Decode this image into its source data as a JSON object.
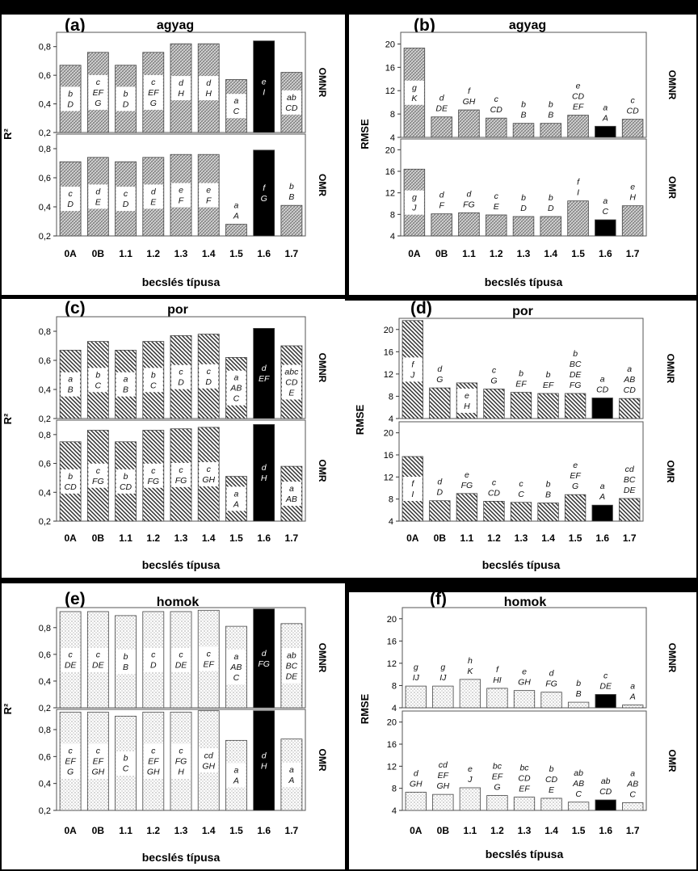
{
  "figure": {
    "categories": [
      "0A",
      "0B",
      "1.1",
      "1.2",
      "1.3",
      "1.4",
      "1.5",
      "1.6",
      "1.7"
    ],
    "xlabel": "becslés típusa",
    "row_labels": [
      "OMNR",
      "OMR"
    ],
    "r2_label": "R²",
    "rmse_label": "RMSE",
    "colors": {
      "highlight": "#000000",
      "frame": "#666666",
      "background": "#ffffff",
      "outer": "#000000"
    },
    "patterns": {
      "agyag": "crosshatch",
      "por": "diagonal-hatch",
      "homok": "dotted"
    }
  },
  "chart_data": [
    {
      "id": "a",
      "panel_label": "(a)",
      "title": "agyag",
      "type": "bar",
      "metric": "R2",
      "ylim": [
        0.2,
        0.9
      ],
      "yticks": [
        "0,2",
        "0,4",
        "0,6",
        "0,8"
      ],
      "ytick_values": [
        0.2,
        0.4,
        0.6,
        0.8
      ],
      "series": [
        {
          "name": "OMNR",
          "values": [
            0.67,
            0.76,
            0.67,
            0.76,
            0.82,
            0.82,
            0.57,
            0.84,
            0.62
          ],
          "letters": [
            "b|D",
            "c|EF|G",
            "b|D",
            "c|EF|G",
            "d|H",
            "d|H",
            "a|C",
            "e|I",
            "ab|CD"
          ]
        },
        {
          "name": "OMR",
          "values": [
            0.71,
            0.74,
            0.71,
            0.74,
            0.76,
            0.76,
            0.28,
            0.79,
            0.41
          ],
          "letters": [
            "c|D",
            "d|E",
            "c|D",
            "d|E",
            "e|F",
            "e|F",
            "a|A",
            "f|G",
            "b|B"
          ]
        }
      ]
    },
    {
      "id": "b",
      "panel_label": "(b)",
      "title": "agyag",
      "type": "bar",
      "metric": "RMSE",
      "ylim": [
        4,
        22
      ],
      "yticks": [
        "4",
        "8",
        "12",
        "16",
        "20"
      ],
      "ytick_values": [
        4,
        8,
        12,
        16,
        20
      ],
      "series": [
        {
          "name": "OMNR",
          "values": [
            19.3,
            7.5,
            8.7,
            7.3,
            6.4,
            6.4,
            7.8,
            5.9,
            7.1
          ],
          "letters": [
            "g|K",
            "d|DE",
            "f|GH",
            "c|CD",
            "b|B",
            "b|B",
            "e|CD|EF",
            "a|A",
            "c|CD"
          ]
        },
        {
          "name": "OMR",
          "values": [
            16.4,
            8.1,
            8.3,
            7.9,
            7.6,
            7.6,
            10.5,
            7.0,
            9.6
          ],
          "letters": [
            "g|J",
            "d|F",
            "d|FG",
            "c|E",
            "b|D",
            "b|D",
            "f|I",
            "a|C",
            "e|H"
          ]
        }
      ]
    },
    {
      "id": "c",
      "panel_label": "(c)",
      "title": "por",
      "type": "bar",
      "metric": "R2",
      "ylim": [
        0.2,
        0.9
      ],
      "yticks": [
        "0,2",
        "0,4",
        "0,6",
        "0,8"
      ],
      "ytick_values": [
        0.2,
        0.4,
        0.6,
        0.8
      ],
      "series": [
        {
          "name": "OMNR",
          "values": [
            0.67,
            0.73,
            0.67,
            0.73,
            0.77,
            0.78,
            0.62,
            0.82,
            0.7
          ],
          "letters": [
            "a|B",
            "b|C",
            "a|B",
            "b|C",
            "c|D",
            "c|D",
            "a|AB|C",
            "d|EF",
            "abc|CD|E"
          ]
        },
        {
          "name": "OMR",
          "values": [
            0.75,
            0.83,
            0.75,
            0.83,
            0.84,
            0.85,
            0.51,
            0.87,
            0.58
          ],
          "letters": [
            "b|CD",
            "c|FG",
            "b|CD",
            "c|FG",
            "c|FG",
            "c|GH",
            "a|A",
            "d|H",
            "a|AB"
          ]
        }
      ]
    },
    {
      "id": "d",
      "panel_label": "(d)",
      "title": "por",
      "type": "bar",
      "metric": "RMSE",
      "ylim": [
        4,
        22
      ],
      "yticks": [
        "4",
        "8",
        "12",
        "16",
        "20"
      ],
      "ytick_values": [
        4,
        8,
        12,
        16,
        20
      ],
      "series": [
        {
          "name": "OMNR",
          "values": [
            21.6,
            9.5,
            10.4,
            9.3,
            8.7,
            8.5,
            8.5,
            7.7,
            7.6
          ],
          "letters": [
            "f|J",
            "d|G",
            "e|H",
            "c|G",
            "b|EF",
            "b|EF",
            "b|BC|DE|FG",
            "a|CD",
            "a|AB|CD"
          ]
        },
        {
          "name": "OMR",
          "values": [
            15.7,
            7.7,
            9.0,
            7.6,
            7.4,
            7.3,
            8.8,
            6.9,
            8.1
          ],
          "letters": [
            "f|I",
            "d|D",
            "e|FG",
            "c|CD",
            "c|C",
            "b|B",
            "e|EF|G",
            "a|A",
            "cd|BC|DE"
          ]
        }
      ]
    },
    {
      "id": "e",
      "panel_label": "(e)",
      "title": "homok",
      "type": "bar",
      "metric": "R2",
      "ylim": [
        0.2,
        0.95
      ],
      "yticks": [
        "0,2",
        "0,4",
        "0,6",
        "0,8"
      ],
      "ytick_values": [
        0.2,
        0.4,
        0.6,
        0.8
      ],
      "series": [
        {
          "name": "OMNR",
          "values": [
            0.92,
            0.92,
            0.89,
            0.92,
            0.92,
            0.93,
            0.81,
            0.94,
            0.83
          ],
          "letters": [
            "c|DE",
            "c|DE",
            "b|B",
            "c|D",
            "c|DE",
            "c|EF",
            "a|AB|C",
            "d|FG",
            "ab|BC|DE"
          ]
        },
        {
          "name": "OMR",
          "values": [
            0.93,
            0.93,
            0.9,
            0.93,
            0.93,
            0.94,
            0.72,
            0.94,
            0.73
          ],
          "letters": [
            "c|EF|G",
            "c|EF|GH",
            "b|C",
            "c|EF|GH",
            "c|FG|H",
            "cd|GH",
            "a|A",
            "d|H",
            "a|A"
          ]
        }
      ]
    },
    {
      "id": "f",
      "panel_label": "(f)",
      "title": "homok",
      "type": "bar",
      "metric": "RMSE",
      "ylim": [
        4,
        22
      ],
      "yticks": [
        "4",
        "8",
        "12",
        "16",
        "20"
      ],
      "ytick_values": [
        4,
        8,
        12,
        16,
        20
      ],
      "series": [
        {
          "name": "OMNR",
          "values": [
            7.9,
            7.9,
            9.1,
            7.5,
            7.1,
            6.8,
            5.0,
            6.4,
            4.5
          ],
          "letters": [
            "g|IJ",
            "g|IJ",
            "h|K",
            "f|HI",
            "e|GH",
            "d|FG",
            "b|B",
            "c|DE",
            "a|A"
          ]
        },
        {
          "name": "OMR",
          "values": [
            7.3,
            6.9,
            8.1,
            6.7,
            6.4,
            6.2,
            5.5,
            5.9,
            5.4
          ],
          "letters": [
            "d|GH",
            "cd|EF|GH",
            "e|J",
            "bc|EF|G",
            "bc|CD|EF",
            "b|CD|E",
            "ab|AB|C",
            "ab|CD",
            "a|AB|C"
          ]
        }
      ]
    }
  ]
}
